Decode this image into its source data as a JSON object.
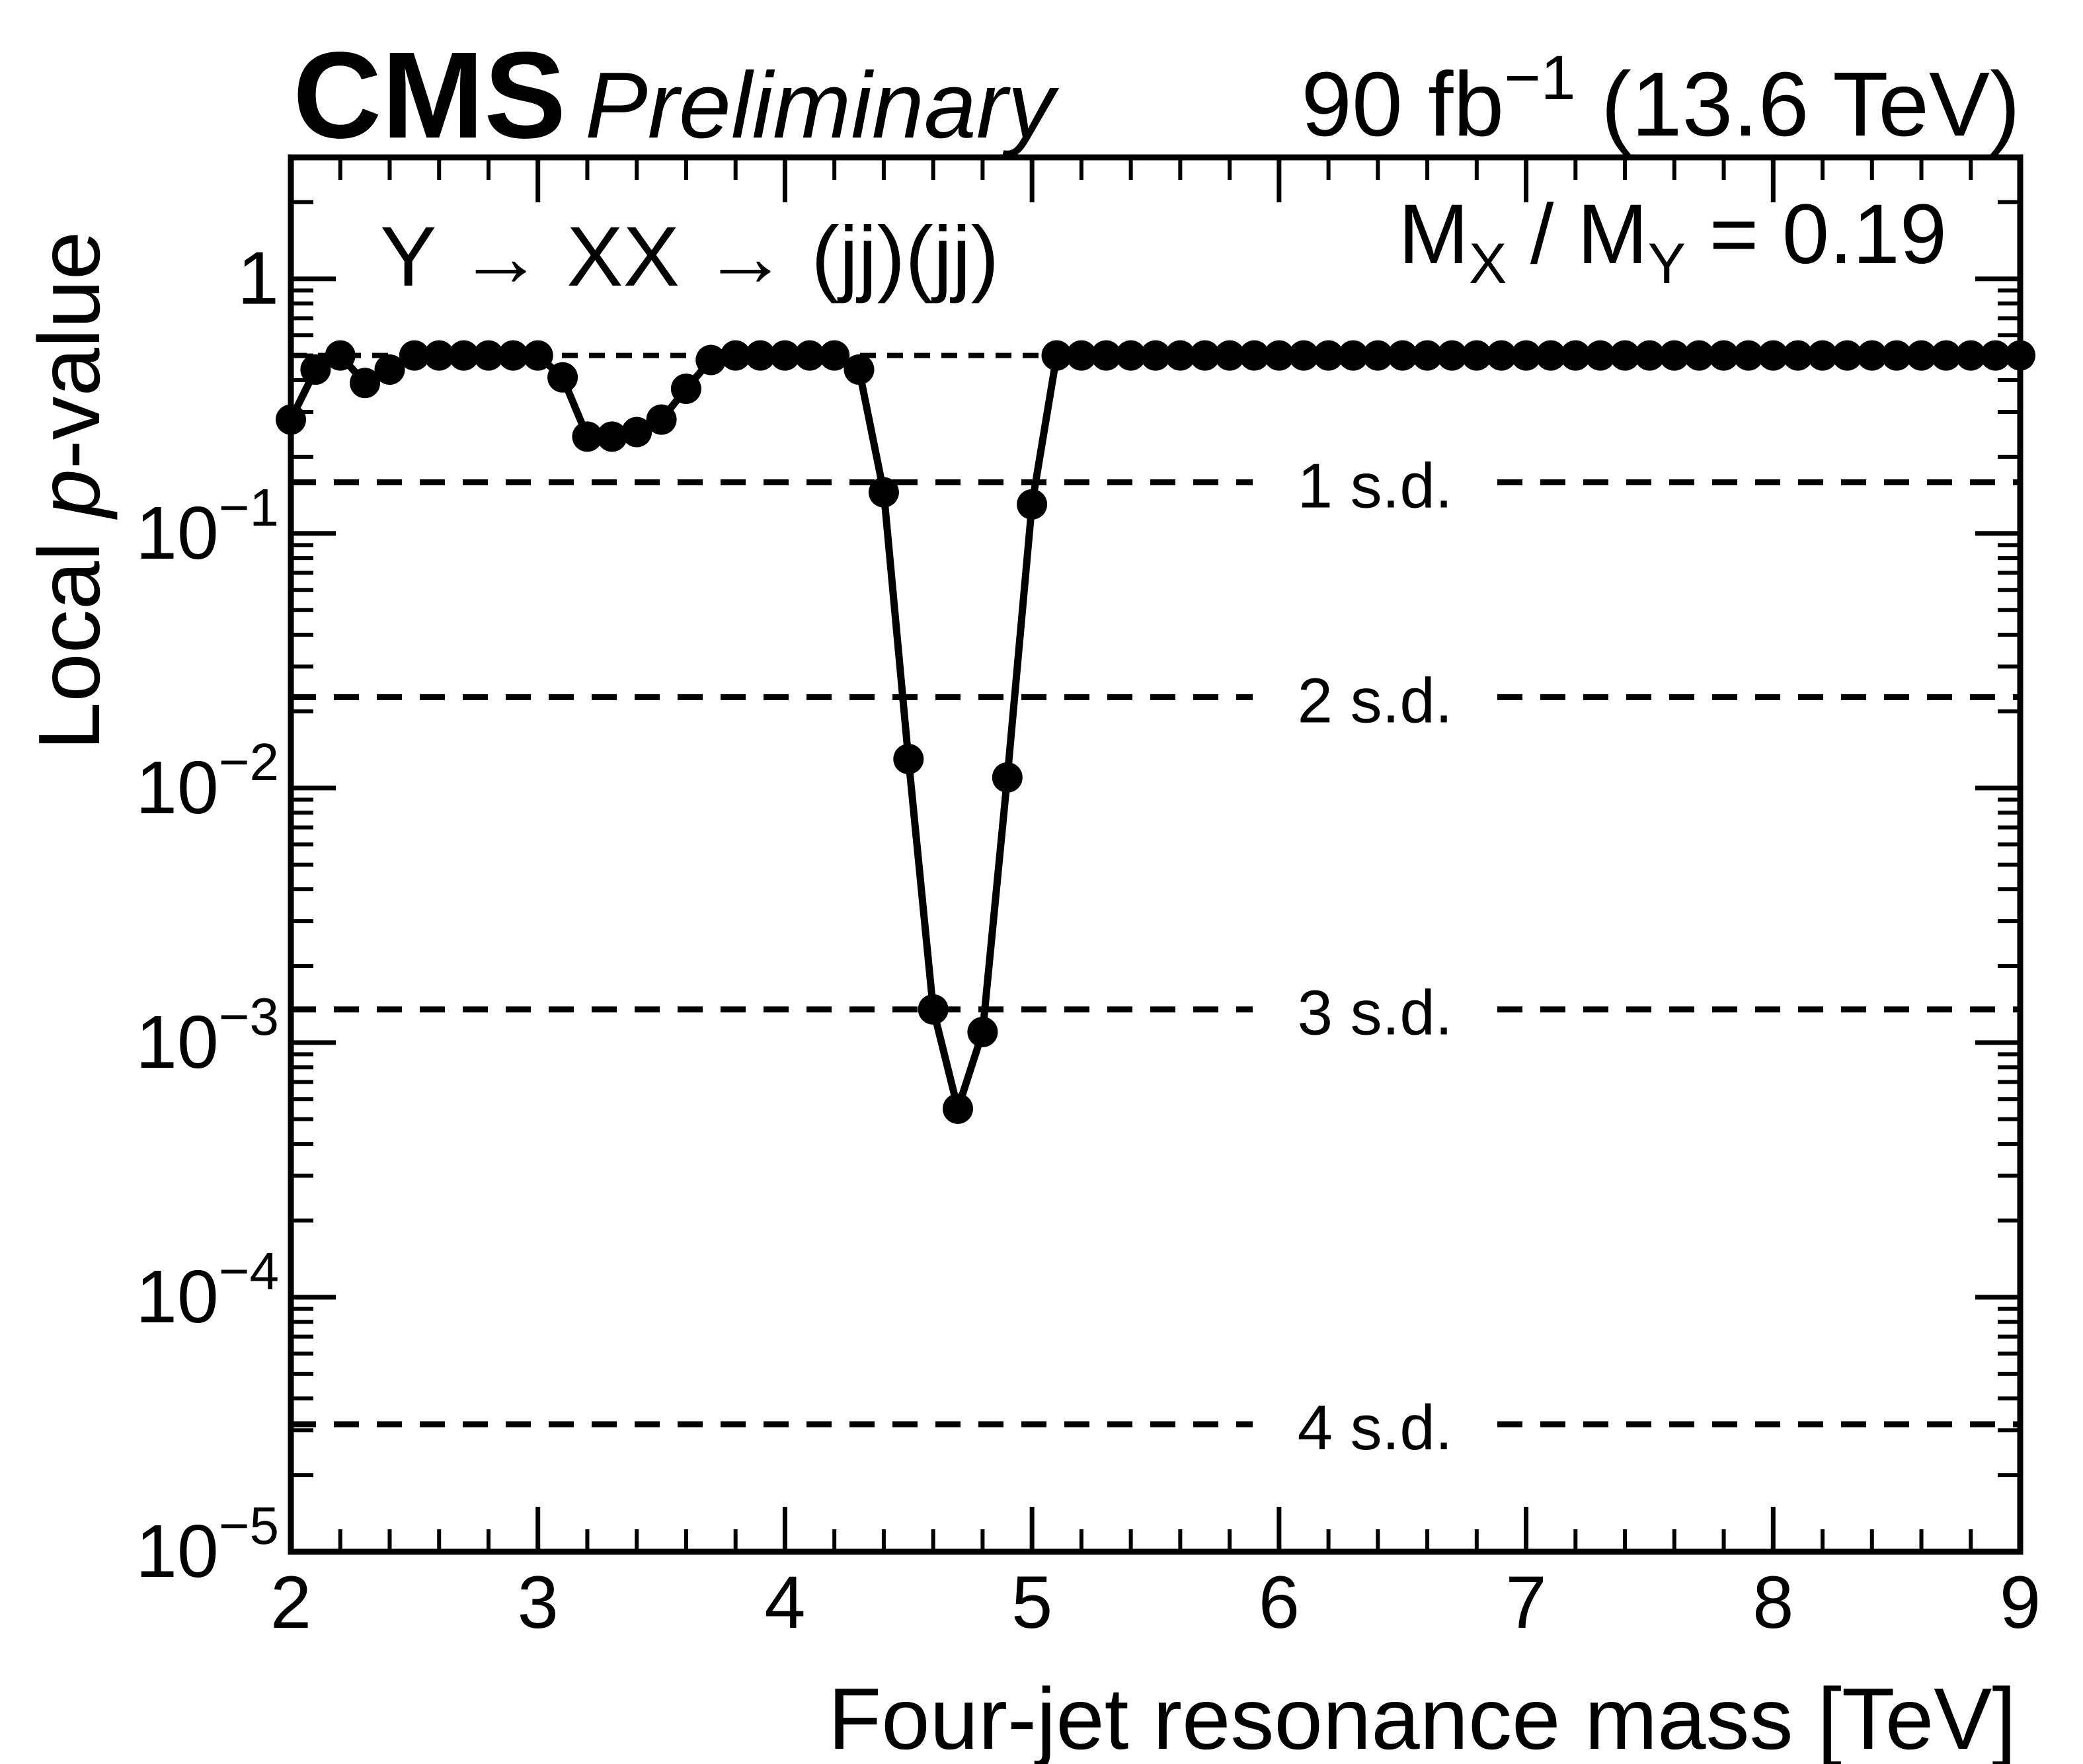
{
  "colors": {
    "foreground": "#000000",
    "background": "#ffffff"
  },
  "header": {
    "experiment": "CMS",
    "status": "Preliminary",
    "lumi": {
      "prefix": "90 fb",
      "sup": "−1",
      "suffix": " (13.6 TeV)"
    }
  },
  "annotations": {
    "process_label": "Y → XX → (jj)(jj)",
    "ratio_label": {
      "m1": "M",
      "sub1": "X",
      "mid": " / M",
      "sub2": "Y",
      "tail": " = 0.19"
    }
  },
  "chart_data": {
    "type": "line",
    "title": "CMS Preliminary local p-value scan",
    "xlabel": "Four-jet resonance mass [TeV]",
    "ylabel_parts": {
      "pre": "Local ",
      "italic": "p",
      "post": "-value"
    },
    "xlim": [
      2,
      9
    ],
    "ylim": [
      1e-05,
      3
    ],
    "x_major_tick_step": 1,
    "x_minor_tick_step": 0.2,
    "grid": false,
    "legend_position": "none",
    "marker": "filled-circle",
    "line_color": "#000000",
    "x_tick_labels": [
      "2",
      "3",
      "4",
      "5",
      "6",
      "7",
      "8",
      "9"
    ],
    "y_tick_labels": [
      {
        "base": "1",
        "exp": ""
      },
      {
        "base": "10",
        "exp": "−1"
      },
      {
        "base": "10",
        "exp": "−2"
      },
      {
        "base": "10",
        "exp": "−3"
      },
      {
        "base": "10",
        "exp": "−4"
      },
      {
        "base": "10",
        "exp": "−5"
      }
    ],
    "cap_line_p": 0.5,
    "sd_lines": [
      {
        "label": "1 s.d.",
        "p": 0.1587
      },
      {
        "label": "2 s.d.",
        "p": 0.02275
      },
      {
        "label": "3 s.d.",
        "p": 0.00135
      },
      {
        "label": "4 s.d.",
        "p": 3.17e-05
      }
    ],
    "x": [
      2.0,
      2.1,
      2.2,
      2.3,
      2.4,
      2.5,
      2.6,
      2.7,
      2.8,
      2.9,
      3.0,
      3.1,
      3.2,
      3.3,
      3.4,
      3.5,
      3.6,
      3.7,
      3.8,
      3.9,
      4.0,
      4.1,
      4.2,
      4.3,
      4.4,
      4.5,
      4.6,
      4.7,
      4.8,
      4.9,
      5.0,
      5.1,
      5.2,
      5.3,
      5.4,
      5.5,
      5.6,
      5.7,
      5.8,
      5.9,
      6.0,
      6.1,
      6.2,
      6.3,
      6.4,
      6.5,
      6.6,
      6.7,
      6.8,
      6.9,
      7.0,
      7.1,
      7.2,
      7.3,
      7.4,
      7.5,
      7.6,
      7.7,
      7.8,
      7.9,
      8.0,
      8.1,
      8.2,
      8.3,
      8.4,
      8.5,
      8.6,
      8.7,
      8.8,
      8.9,
      9.0
    ],
    "y": [
      0.28,
      0.44,
      0.5,
      0.39,
      0.44,
      0.5,
      0.5,
      0.5,
      0.5,
      0.5,
      0.5,
      0.41,
      0.24,
      0.24,
      0.25,
      0.28,
      0.37,
      0.48,
      0.5,
      0.5,
      0.5,
      0.5,
      0.5,
      0.44,
      0.145,
      0.013,
      0.00135,
      0.00055,
      0.0011,
      0.011,
      0.13,
      0.5,
      0.5,
      0.5,
      0.5,
      0.5,
      0.5,
      0.5,
      0.5,
      0.5,
      0.5,
      0.5,
      0.5,
      0.5,
      0.5,
      0.5,
      0.5,
      0.5,
      0.5,
      0.5,
      0.5,
      0.5,
      0.5,
      0.5,
      0.5,
      0.5,
      0.5,
      0.5,
      0.5,
      0.5,
      0.5,
      0.5,
      0.5,
      0.5,
      0.5,
      0.5,
      0.5,
      0.5,
      0.5,
      0.5,
      0.5
    ]
  }
}
